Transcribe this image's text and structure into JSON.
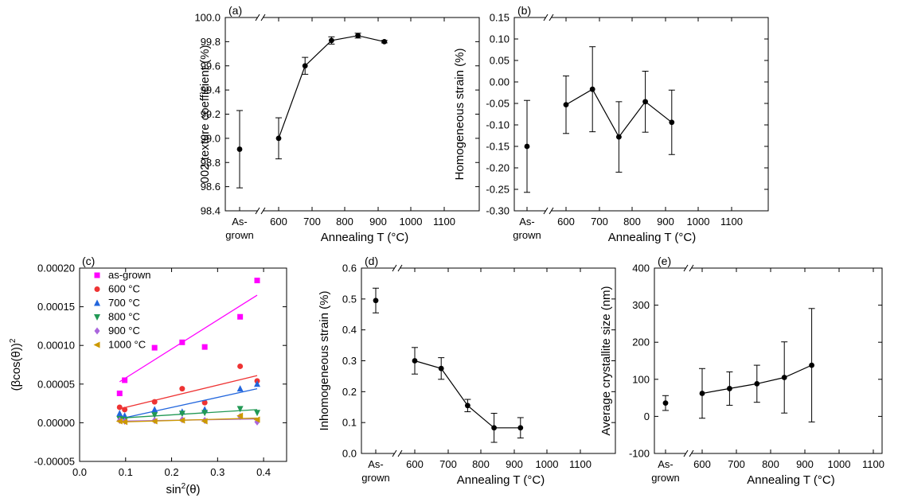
{
  "chart_data": [
    {
      "panel": "(a)",
      "type": "line",
      "xlabel": "Annealing T (°C)",
      "ylabel": "002 texture coefficient (%)",
      "ylim": [
        98.4,
        100.0
      ],
      "yticks": [
        "98.4",
        "98.6",
        "98.8",
        "99.0",
        "99.2",
        "99.4",
        "99.6",
        "99.8",
        "100.0"
      ],
      "xlim": [
        500,
        1100
      ],
      "xticks": [
        "600",
        "700",
        "800",
        "900",
        "1000",
        "1100"
      ],
      "category_tick": [
        "As-",
        "grown"
      ],
      "as_grown": {
        "y": 98.91,
        "err": 0.32
      },
      "x": [
        600,
        700,
        800,
        900,
        1000
      ],
      "y": [
        99.0,
        99.6,
        99.81,
        99.85,
        99.8
      ],
      "err": [
        0.17,
        0.07,
        0.03,
        0.02,
        0.01
      ]
    },
    {
      "panel": "(b)",
      "type": "line",
      "xlabel": "Annealing T (°C)",
      "ylabel": "Homogeneous strain (%)",
      "ylim": [
        -0.3,
        0.15
      ],
      "yticks": [
        "0.15",
        "0.10",
        "0.05",
        "0.00",
        "-0.05",
        "-0.10",
        "-0.15",
        "-0.20",
        "-0.25",
        "-0.30"
      ],
      "xlim": [
        500,
        1100
      ],
      "xticks": [
        "600",
        "700",
        "800",
        "900",
        "1000",
        "1100"
      ],
      "category_tick": [
        "As-",
        "grown"
      ],
      "as_grown": {
        "y": -0.15,
        "err": 0.107
      },
      "x": [
        600,
        700,
        800,
        900,
        1000
      ],
      "y": [
        -0.053,
        -0.017,
        -0.128,
        -0.046,
        -0.094
      ],
      "err": [
        0.067,
        0.099,
        0.082,
        0.071,
        0.075
      ]
    },
    {
      "panel": "(c)",
      "type": "scatter",
      "xlabel_main": "sin",
      "xlabel_sup": "2",
      "xlabel_tail": "(θ)",
      "ylabel_main": "(βcos(θ))",
      "ylabel_sup": "2",
      "xlim": [
        0.0,
        0.45
      ],
      "xticks": [
        "0.0",
        "0.1",
        "0.2",
        "0.3",
        "0.4"
      ],
      "ylim": [
        -5e-05,
        0.0002
      ],
      "yticks": [
        "0.00020",
        "0.00015",
        "0.00010",
        "0.00005",
        "0.00000",
        "-0.00005"
      ],
      "x": [
        0.087,
        0.098,
        0.163,
        0.223,
        0.272,
        0.349,
        0.386
      ],
      "series": [
        {
          "name": "as-grown",
          "color": "#ff00ff",
          "marker": "square",
          "y": [
            3.8e-05,
            5.5e-05,
            9.7e-05,
            0.000104,
            9.8e-05,
            0.000137,
            0.000184
          ],
          "fit": [
            5.3e-05,
            0.000165
          ]
        },
        {
          "name": "600 °C",
          "color": "#ee3333",
          "marker": "circle",
          "y": [
            2e-05,
            1.7e-05,
            2.7e-05,
            4.4e-05,
            2.6e-05,
            7.3e-05,
            5.4e-05
          ],
          "fit": [
            1.8e-05,
            6.1e-05
          ]
        },
        {
          "name": "700 °C",
          "color": "#2266dd",
          "marker": "triangle-up",
          "y": [
            1.2e-05,
            9e-06,
            1.7e-05,
            1.4e-05,
            1.7e-05,
            4.4e-05,
            5e-05
          ],
          "fit": [
            5e-06,
            4.4e-05
          ]
        },
        {
          "name": "800 °C",
          "color": "#229955",
          "marker": "triangle-down",
          "y": [
            5e-06,
            4e-06,
            1e-05,
            1.2e-05,
            1.3e-05,
            1.8e-05,
            1.3e-05
          ],
          "fit": [
            6e-06,
            1.7e-05
          ]
        },
        {
          "name": "900 °C",
          "color": "#aa66dd",
          "marker": "diamond",
          "y": [
            3e-06,
            2e-06,
            3e-06,
            4e-06,
            3e-06,
            8e-06,
            1e-06
          ],
          "fit": [
            2e-06,
            5e-06
          ]
        },
        {
          "name": "1000 °C",
          "color": "#cc9900",
          "marker": "triangle-left",
          "y": [
            2e-06,
            1e-06,
            2e-06,
            3e-06,
            2e-06,
            9e-06,
            4e-06
          ],
          "fit": [
            1e-06,
            6e-06
          ]
        }
      ]
    },
    {
      "panel": "(d)",
      "type": "line",
      "xlabel": "Annealing T (°C)",
      "ylabel": "Inhomogeneous strain (%)",
      "ylim": [
        0.0,
        0.6
      ],
      "yticks": [
        "0.6",
        "0.5",
        "0.4",
        "0.3",
        "0.2",
        "0.1",
        "0.0"
      ],
      "xlim": [
        500,
        1100
      ],
      "xticks": [
        "600",
        "700",
        "800",
        "900",
        "1000",
        "1100"
      ],
      "category_tick": [
        "As-",
        "grown"
      ],
      "as_grown": {
        "y": 0.495,
        "err": 0.04
      },
      "x": [
        600,
        700,
        800,
        900,
        1000
      ],
      "y": [
        0.3,
        0.275,
        0.155,
        0.083,
        0.083
      ],
      "err": [
        0.043,
        0.035,
        0.02,
        0.047,
        0.033
      ]
    },
    {
      "panel": "(e)",
      "type": "line",
      "xlabel": "Annealing T (°C)",
      "ylabel": "Average crystallite size (nm)",
      "ylim": [
        -100,
        400
      ],
      "yticks": [
        "400",
        "300",
        "200",
        "100",
        "0",
        "-100"
      ],
      "xlim": [
        500,
        1100
      ],
      "xticks": [
        "600",
        "700",
        "800",
        "900",
        "1000",
        "1100"
      ],
      "category_tick": [
        "As-",
        "grown"
      ],
      "as_grown": {
        "y": 36,
        "err": 20
      },
      "x": [
        600,
        700,
        800,
        900,
        1000
      ],
      "y": [
        62,
        75,
        88,
        105,
        138
      ],
      "err": [
        67,
        45,
        50,
        96,
        153
      ]
    }
  ]
}
